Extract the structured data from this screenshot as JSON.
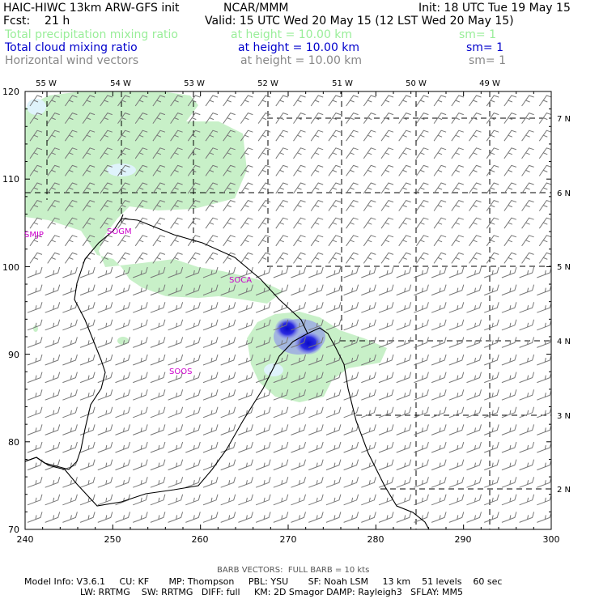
{
  "header": {
    "model_title": "HAIC-HIWC 13km ARW-GFS init",
    "org": "NCAR/MMM",
    "init": "Init: 18 UTC Tue 19 May 15",
    "fcst": "Fcst:    21 h",
    "valid": "Valid: 15 UTC Wed 20 May 15 (12 LST Wed 20 May 15)"
  },
  "fields": [
    {
      "name": "Total precipitation mixing ratio",
      "height": "at height = 10.00 km",
      "sm": "sm= 1",
      "color": "#99ee99"
    },
    {
      "name": "Total cloud mixing ratio",
      "height": "at height = 10.00 km",
      "sm": "sm= 1",
      "color": "#0000cc"
    },
    {
      "name": "Horizontal wind vectors",
      "height": "at height = 10.00 km",
      "sm": "sm= 1",
      "color": "#888888"
    }
  ],
  "map": {
    "x_ticks": [
      "240",
      "250",
      "260",
      "270",
      "280",
      "290",
      "300"
    ],
    "y_ticks": [
      "70",
      "80",
      "90",
      "100",
      "110",
      "120"
    ],
    "lon_labels": [
      "55 W",
      "54 W",
      "53 W",
      "52 W",
      "51 W",
      "50 W",
      "49 W"
    ],
    "lat_labels": [
      "7 N",
      "6 N",
      "5 N",
      "4 N",
      "3 N",
      "2 N"
    ],
    "stations": [
      "SMJP",
      "SOGM",
      "SOCA",
      "SOOS"
    ],
    "colors": {
      "precip": "#c8f0c8",
      "precip_light": "#dff3fb",
      "cloud": "#1414d8",
      "coast": "#000000",
      "barb": "#777777"
    }
  },
  "footer": {
    "barb_note": "BARB VECTORS:  FULL BARB = 10 kts",
    "info_line1": "Model Info: V3.6.1     CU: KF       MP: Thompson     PBL: YSU       SF: Noah LSM     13 km    51 levels    60 sec",
    "info_line2": "LW: RRTMG    SW: RRTMG   DIFF: full     KM: 2D Smagor DAMP: Rayleigh3   SFLAY: MM5"
  }
}
